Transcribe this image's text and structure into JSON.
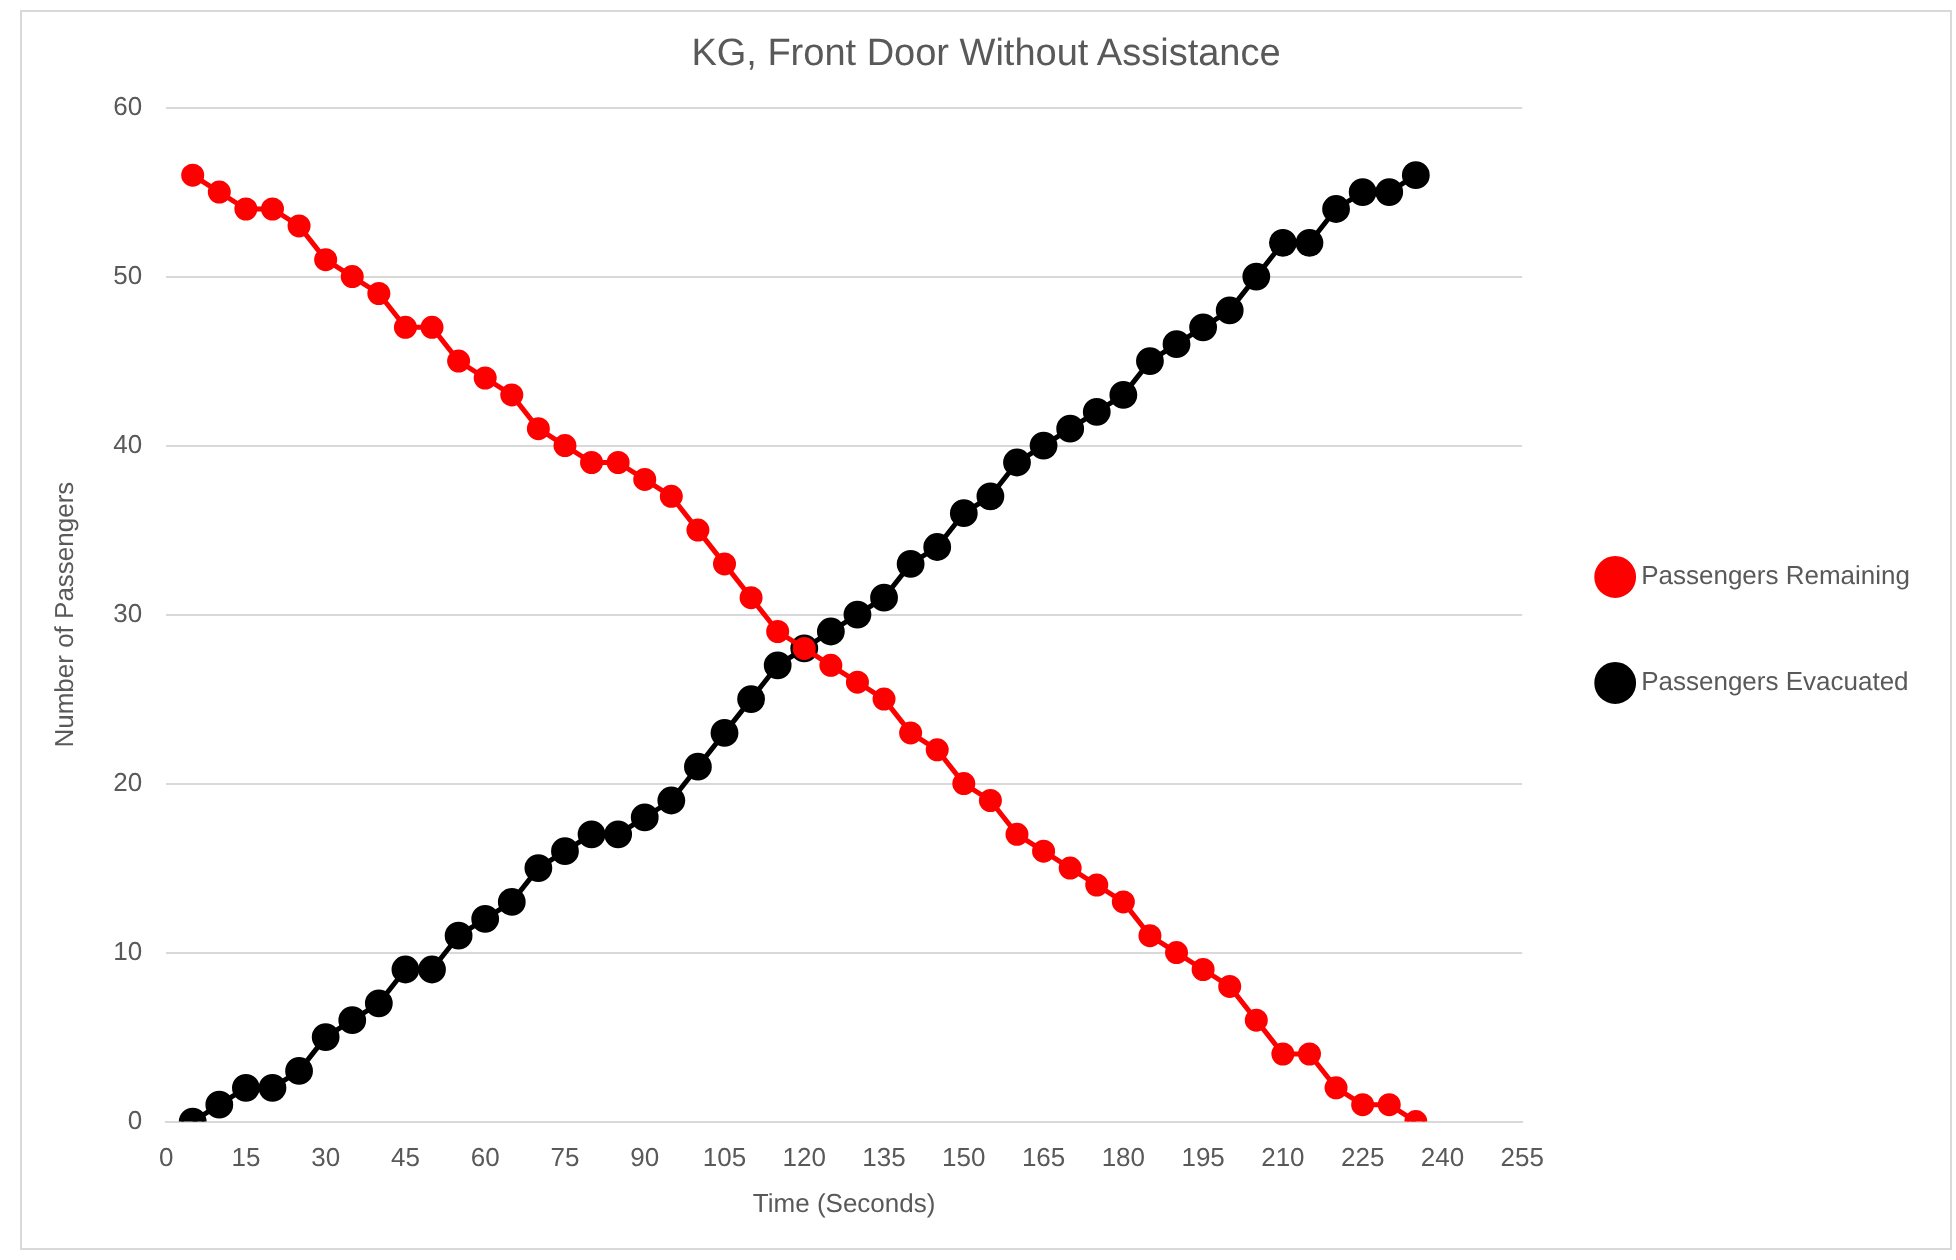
{
  "chart_data": {
    "type": "line",
    "title": "KG, Front Door Without Assistance",
    "xlabel": "Time (Seconds)",
    "ylabel": "Number of Passengers",
    "x": [
      5,
      10,
      15,
      20,
      25,
      30,
      35,
      40,
      45,
      50,
      55,
      60,
      65,
      70,
      75,
      80,
      85,
      90,
      95,
      100,
      105,
      110,
      115,
      120,
      125,
      130,
      135,
      140,
      145,
      150,
      155,
      160,
      165,
      170,
      175,
      180,
      185,
      190,
      195,
      200,
      205,
      210,
      215,
      220,
      225,
      230,
      235
    ],
    "series": [
      {
        "name": "Passengers Remaining",
        "color": "#ff0000",
        "values": [
          56,
          55,
          54,
          54,
          53,
          51,
          50,
          49,
          47,
          47,
          45,
          44,
          43,
          41,
          40,
          39,
          39,
          38,
          37,
          35,
          33,
          31,
          29,
          28,
          27,
          26,
          25,
          23,
          22,
          20,
          19,
          17,
          16,
          15,
          14,
          13,
          11,
          10,
          9,
          8,
          6,
          4,
          4,
          2,
          1,
          1,
          0
        ]
      },
      {
        "name": "Passengers Evacuated",
        "color": "#000000",
        "values": [
          0,
          1,
          2,
          2,
          3,
          5,
          6,
          7,
          9,
          9,
          11,
          12,
          13,
          15,
          16,
          17,
          17,
          18,
          19,
          21,
          23,
          25,
          27,
          28,
          29,
          30,
          31,
          33,
          34,
          36,
          37,
          39,
          40,
          41,
          42,
          43,
          45,
          46,
          47,
          48,
          50,
          52,
          52,
          54,
          55,
          55,
          56
        ]
      }
    ],
    "xlim": [
      0,
      255
    ],
    "xticks": [
      0,
      15,
      30,
      45,
      60,
      75,
      90,
      105,
      120,
      135,
      150,
      165,
      180,
      195,
      210,
      225,
      240,
      255
    ],
    "ylim": [
      0,
      60
    ],
    "yticks": [
      0,
      10,
      20,
      30,
      40,
      50,
      60
    ],
    "grid": "y",
    "legend": "right",
    "marker": "circle",
    "line_style": "solid"
  }
}
